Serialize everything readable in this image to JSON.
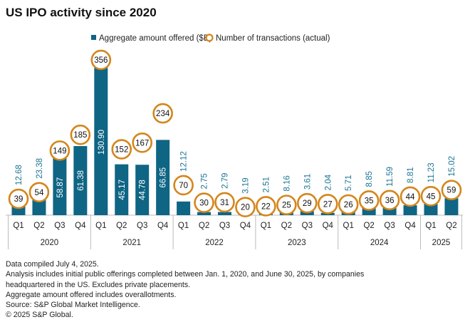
{
  "title": "US IPO activity since 2020",
  "chart_data": {
    "type": "bar",
    "title": "US IPO activity since 2020",
    "legend": {
      "placement": "top",
      "entries": [
        "Aggregate amount offered ($B)",
        "Number of transactions (actual)"
      ]
    },
    "grid": false,
    "years": [
      "2020",
      "2021",
      "2022",
      "2023",
      "2024",
      "2025"
    ],
    "categories": [
      {
        "q": "Q1",
        "year": "2020"
      },
      {
        "q": "Q2",
        "year": "2020"
      },
      {
        "q": "Q3",
        "year": "2020"
      },
      {
        "q": "Q4",
        "year": "2020"
      },
      {
        "q": "Q1",
        "year": "2021"
      },
      {
        "q": "Q2",
        "year": "2021"
      },
      {
        "q": "Q3",
        "year": "2021"
      },
      {
        "q": "Q4",
        "year": "2021"
      },
      {
        "q": "Q1",
        "year": "2022"
      },
      {
        "q": "Q2",
        "year": "2022"
      },
      {
        "q": "Q3",
        "year": "2022"
      },
      {
        "q": "Q4",
        "year": "2022"
      },
      {
        "q": "Q1",
        "year": "2023"
      },
      {
        "q": "Q2",
        "year": "2023"
      },
      {
        "q": "Q3",
        "year": "2023"
      },
      {
        "q": "Q4",
        "year": "2023"
      },
      {
        "q": "Q1",
        "year": "2024"
      },
      {
        "q": "Q2",
        "year": "2024"
      },
      {
        "q": "Q3",
        "year": "2024"
      },
      {
        "q": "Q4",
        "year": "2024"
      },
      {
        "q": "Q1",
        "year": "2025"
      },
      {
        "q": "Q2",
        "year": "2025"
      }
    ],
    "series": [
      {
        "name": "Aggregate amount offered ($B)",
        "type": "bar",
        "color": "#0f6584",
        "values": [
          "12.68",
          "23.38",
          "58.87",
          "61.38",
          "130.90",
          "45.17",
          "44.78",
          "66.85",
          "12.12",
          "2.75",
          "2.79",
          "3.19",
          "2.51",
          "8.16",
          "3.61",
          "2.04",
          "5.71",
          "8.85",
          "11.59",
          "8.81",
          "11.23",
          "15.02"
        ]
      },
      {
        "name": "Number of transactions (actual)",
        "type": "marker",
        "color": "#d4861c",
        "values": [
          39,
          54,
          149,
          185,
          356,
          152,
          167,
          234,
          70,
          30,
          31,
          20,
          22,
          25,
          29,
          27,
          26,
          35,
          36,
          44,
          45,
          59
        ]
      }
    ]
  },
  "notes": [
    "Data compiled July 4, 2025.",
    "Analysis includes initial public offerings completed between Jan. 1, 2020, and June 30, 2025, by companies",
    "headquartered in the US. Excludes private placements.",
    "Aggregate amount offered includes overallotments.",
    "Source: S&P Global Market Intelligence.",
    "© 2025 S&P Global."
  ]
}
